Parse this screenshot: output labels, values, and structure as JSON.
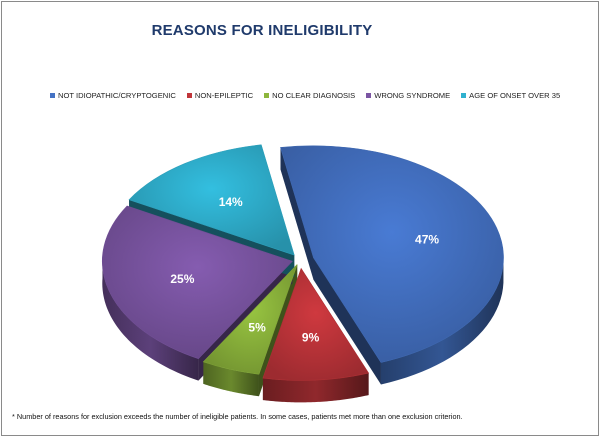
{
  "chart_data": {
    "type": "pie",
    "title": "REASONS FOR INELIGIBILITY",
    "legend_position": "top",
    "slices": [
      {
        "name": "NOT IDIOPATHIC/CRYPTOGENIC",
        "value": 47,
        "label": "47%",
        "color": "#4472C4"
      },
      {
        "name": "NON-EPILEPTIC",
        "value": 9,
        "label": "9%",
        "color": "#C0353A"
      },
      {
        "name": "NO CLEAR DIAGNOSIS",
        "value": 5,
        "label": "5%",
        "color": "#8DB63C"
      },
      {
        "name": "WRONG SYNDROME",
        "value": 25,
        "label": "25%",
        "color": "#7B55A3"
      },
      {
        "name": "AGE OF ONSET OVER 35",
        "value": 14,
        "label": "14%",
        "color": "#2FB1CF"
      }
    ]
  },
  "footnote": "* Number of reasons for exclusion exceeds the number of ineligible patients. In some cases, patients met more than one exclusion criterion."
}
